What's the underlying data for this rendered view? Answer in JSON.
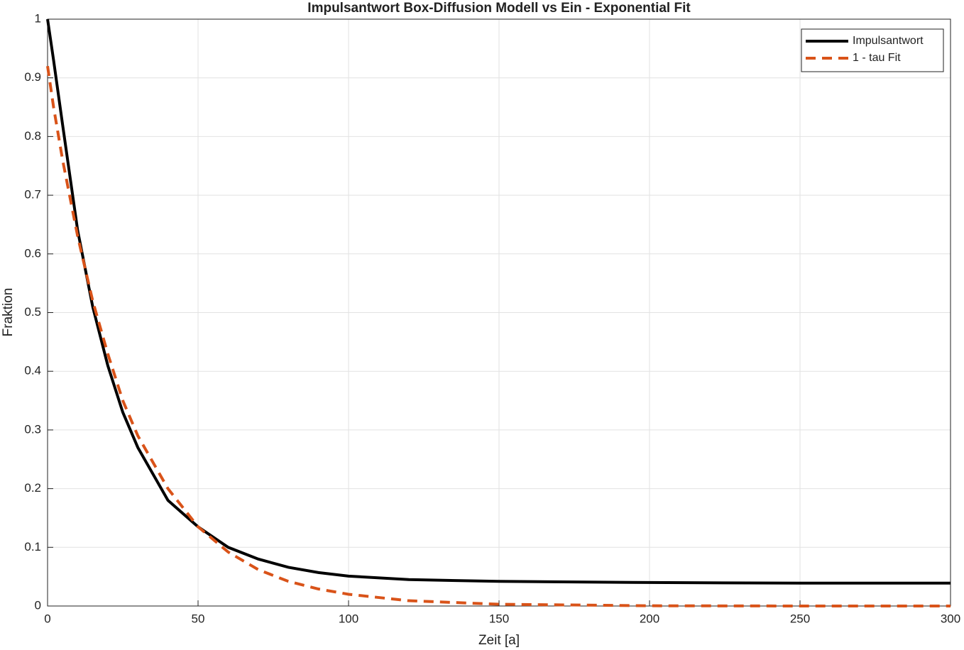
{
  "chart_data": {
    "type": "line",
    "title": "Impulsantwort Box-Diffusion Modell vs Ein - Exponential Fit",
    "x_label": "Zeit [a]",
    "y_label": "Fraktion",
    "x": [
      0,
      2,
      5,
      10,
      15,
      20,
      25,
      30,
      40,
      50,
      60,
      70,
      80,
      90,
      100,
      120,
      150,
      200,
      250,
      300
    ],
    "series": [
      {
        "name": "Impulsantwort",
        "color": "#000000",
        "line_style": "solid",
        "values": [
          1.0,
          0.93,
          0.82,
          0.64,
          0.51,
          0.41,
          0.33,
          0.27,
          0.18,
          0.135,
          0.1,
          0.08,
          0.066,
          0.057,
          0.051,
          0.045,
          0.042,
          0.04,
          0.039,
          0.039
        ]
      },
      {
        "name": "1 - tau Fit",
        "color": "#d95319",
        "line_style": "dashed",
        "values": [
          0.92,
          0.85,
          0.76,
          0.63,
          0.52,
          0.43,
          0.35,
          0.29,
          0.2,
          0.135,
          0.092,
          0.062,
          0.042,
          0.029,
          0.02,
          0.009,
          0.003,
          0.0004,
          0,
          0
        ]
      }
    ],
    "xlim": [
      0,
      300
    ],
    "xticks": [
      0,
      50,
      100,
      150,
      200,
      250,
      300
    ],
    "ylim": [
      0,
      1
    ],
    "yticks": [
      0,
      0.1,
      0.2,
      0.3,
      0.4,
      0.5,
      0.6,
      0.7,
      0.8,
      0.9,
      1
    ],
    "grid": true,
    "legend_position": "upper-right"
  }
}
